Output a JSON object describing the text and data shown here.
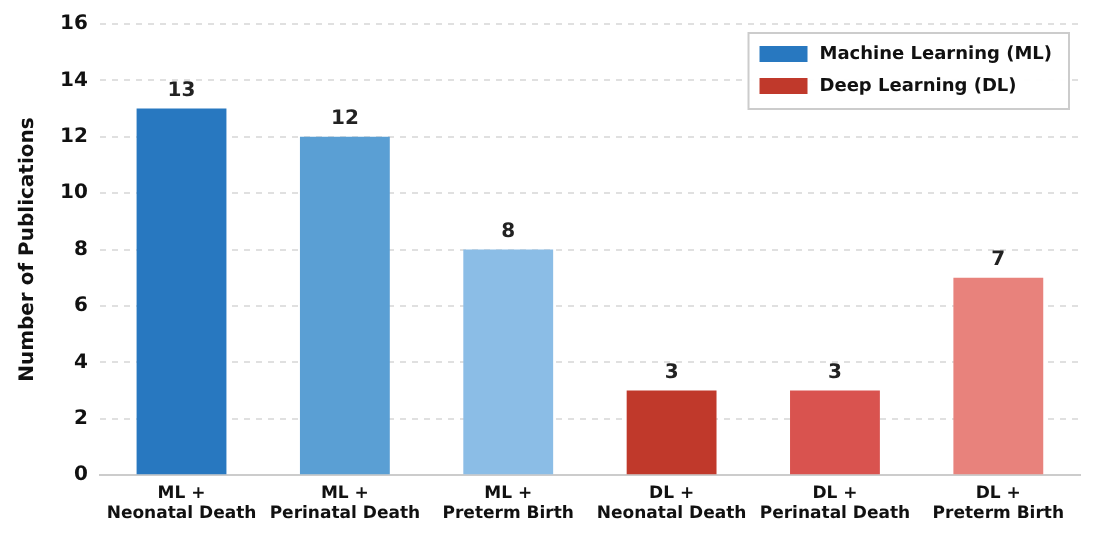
{
  "chart_data": {
    "type": "bar",
    "ylabel": "Number of Publications",
    "categories": [
      "ML +\nNeonatal Death",
      "ML +\nPerinatal Death",
      "ML +\nPreterm Birth",
      "DL +\nNeonatal Death",
      "DL +\nPerinatal Death",
      "DL +\nPreterm Birth"
    ],
    "series": [
      {
        "name": "Machine Learning (ML)",
        "color": "#2878c0",
        "colors": [
          "#2878c0",
          "#5a9fd4",
          "#8bbde6",
          null,
          null,
          null
        ],
        "values": [
          13,
          12,
          8,
          null,
          null,
          null
        ]
      },
      {
        "name": "Deep Learning (DL)",
        "color": "#c0392b",
        "colors": [
          null,
          null,
          null,
          "#c0392b",
          "#d9534f",
          "#e8827c"
        ],
        "values": [
          null,
          null,
          null,
          3,
          3,
          7
        ]
      }
    ],
    "ylim": [
      0,
      16
    ],
    "yticks": [
      0,
      2,
      4,
      6,
      8,
      10,
      12,
      14,
      16
    ],
    "grid": "y",
    "legend": "top right",
    "data_labels": true
  }
}
